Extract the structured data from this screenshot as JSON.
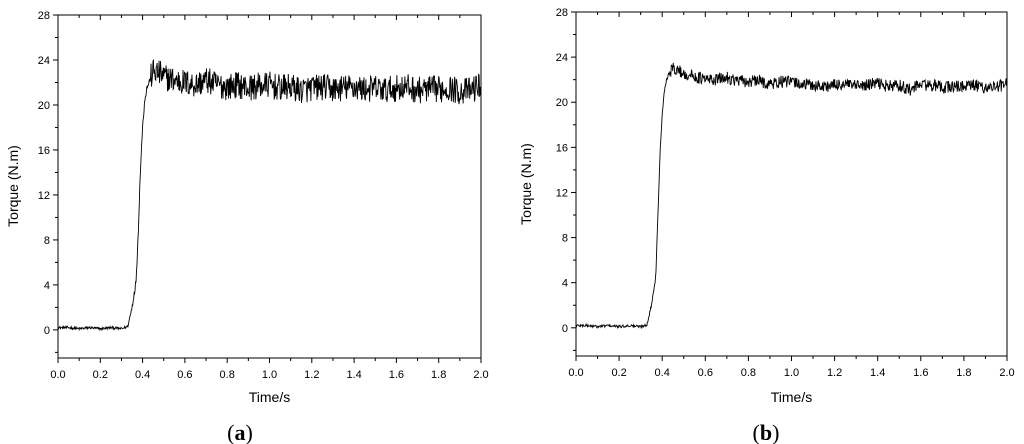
{
  "chart_data": [
    {
      "type": "line",
      "panel": "a",
      "panel_label": "a",
      "xlabel": "Time/s",
      "ylabel": "Torque (N.m)",
      "xlim": [
        0.0,
        2.0
      ],
      "ylim": [
        -2.5,
        28
      ],
      "x_ticks": [
        "0.0",
        "0.2",
        "0.4",
        "0.6",
        "0.8",
        "1.0",
        "1.2",
        "1.4",
        "1.6",
        "1.8",
        "2.0"
      ],
      "y_ticks": [
        "0",
        "4",
        "8",
        "12",
        "16",
        "20",
        "24",
        "28"
      ],
      "grid": false,
      "series": [
        {
          "x": [
            0.0,
            0.05,
            0.1,
            0.15,
            0.2,
            0.25,
            0.3,
            0.33,
            0.35,
            0.37,
            0.38,
            0.39,
            0.4,
            0.41,
            0.42,
            0.43,
            0.45,
            0.48,
            0.5,
            0.55,
            0.6,
            0.65,
            0.7,
            0.75,
            0.8,
            0.85,
            0.9,
            0.95,
            1.0,
            1.05,
            1.1,
            1.15,
            1.2,
            1.25,
            1.3,
            1.35,
            1.4,
            1.45,
            1.5,
            1.55,
            1.6,
            1.65,
            1.7,
            1.75,
            1.8,
            1.85,
            1.9,
            1.95,
            2.0
          ],
          "values": [
            0.2,
            0.2,
            0.1,
            0.2,
            0.1,
            0.2,
            0.1,
            0.3,
            2.0,
            4.5,
            9.0,
            14.5,
            18.0,
            20.5,
            21.5,
            22.0,
            23.0,
            22.8,
            22.5,
            22.2,
            22.0,
            21.8,
            22.2,
            21.8,
            21.6,
            21.8,
            21.5,
            21.7,
            21.8,
            21.5,
            21.6,
            21.3,
            21.5,
            21.6,
            21.4,
            21.5,
            21.6,
            21.4,
            21.5,
            21.3,
            21.5,
            21.6,
            21.3,
            21.4,
            21.4,
            21.5,
            21.2,
            21.3,
            21.8
          ],
          "noise_amplitude": 1.2
        }
      ]
    },
    {
      "type": "line",
      "panel": "b",
      "panel_label": "b",
      "xlabel": "Time/s",
      "ylabel": "Torque (N.m)",
      "xlim": [
        0.0,
        2.0
      ],
      "ylim": [
        -2.5,
        28
      ],
      "x_ticks": [
        "0.0",
        "0.2",
        "0.4",
        "0.6",
        "0.8",
        "1.0",
        "1.2",
        "1.4",
        "1.6",
        "1.8",
        "2.0"
      ],
      "y_ticks": [
        "0",
        "4",
        "8",
        "12",
        "16",
        "20",
        "24",
        "28"
      ],
      "grid": false,
      "series": [
        {
          "x": [
            0.0,
            0.05,
            0.1,
            0.15,
            0.2,
            0.25,
            0.3,
            0.33,
            0.35,
            0.37,
            0.38,
            0.39,
            0.4,
            0.41,
            0.42,
            0.43,
            0.45,
            0.48,
            0.5,
            0.55,
            0.6,
            0.65,
            0.7,
            0.75,
            0.8,
            0.85,
            0.9,
            0.95,
            1.0,
            1.05,
            1.1,
            1.15,
            1.2,
            1.25,
            1.3,
            1.35,
            1.4,
            1.45,
            1.5,
            1.55,
            1.6,
            1.65,
            1.7,
            1.75,
            1.8,
            1.85,
            1.9,
            1.95,
            2.0
          ],
          "values": [
            0.2,
            0.2,
            0.1,
            0.2,
            0.1,
            0.2,
            0.1,
            0.3,
            2.0,
            4.5,
            10.0,
            15.5,
            19.0,
            21.0,
            22.0,
            22.5,
            23.0,
            22.8,
            22.5,
            22.3,
            22.0,
            22.0,
            22.2,
            21.9,
            21.8,
            21.9,
            21.6,
            21.8,
            21.8,
            21.6,
            21.5,
            21.4,
            21.5,
            21.6,
            21.4,
            21.5,
            21.7,
            21.4,
            21.5,
            21.1,
            21.6,
            21.5,
            21.3,
            21.4,
            21.4,
            21.5,
            21.3,
            21.4,
            21.6
          ],
          "noise_amplitude": 0.55
        }
      ]
    }
  ]
}
